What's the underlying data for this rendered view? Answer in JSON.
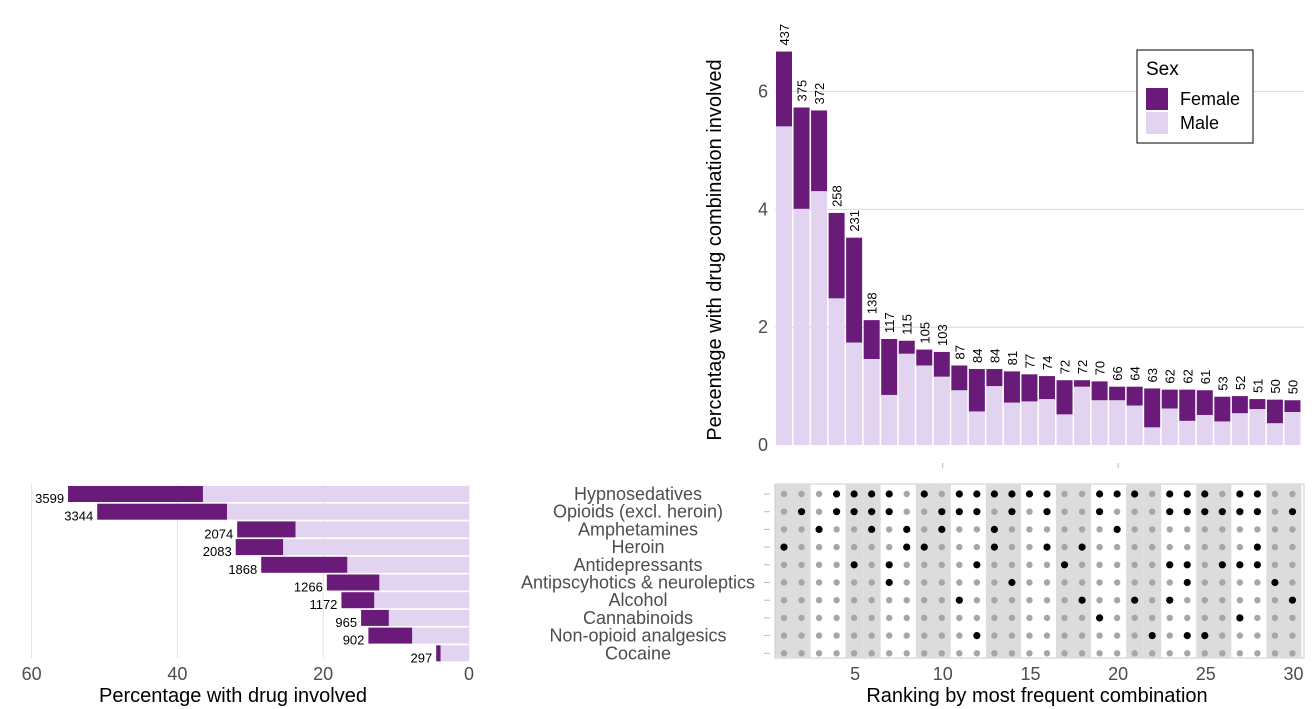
{
  "chart_data": [
    {
      "type": "bar",
      "orientation": "vertical",
      "stacked": true,
      "xlabel": "",
      "ylabel": "Percentage with drug combination involved",
      "ylim": [
        0,
        7
      ],
      "yticks": [
        0,
        2,
        4,
        6
      ],
      "grid": true,
      "ranks": [
        1,
        2,
        3,
        4,
        5,
        6,
        7,
        8,
        9,
        10,
        11,
        12,
        13,
        14,
        15,
        16,
        17,
        18,
        19,
        20,
        21,
        22,
        23,
        24,
        25,
        26,
        27,
        28,
        29,
        30
      ],
      "counts": [
        437,
        375,
        372,
        258,
        231,
        138,
        117,
        115,
        105,
        103,
        87,
        84,
        84,
        81,
        77,
        74,
        72,
        72,
        70,
        66,
        64,
        63,
        62,
        62,
        61,
        53,
        52,
        51,
        50,
        50
      ],
      "series": [
        {
          "name": "Female",
          "color": "#6a1b7a",
          "values": [
            1.27,
            1.72,
            1.37,
            1.45,
            1.78,
            0.66,
            0.95,
            0.22,
            0.27,
            0.42,
            0.42,
            0.72,
            0.29,
            0.53,
            0.46,
            0.39,
            0.58,
            0.11,
            0.32,
            0.23,
            0.32,
            0.66,
            0.32,
            0.53,
            0.42,
            0.42,
            0.29,
            0.17,
            0.4,
            0.2
          ]
        },
        {
          "name": "Male",
          "color": "#e2d4f0",
          "values": [
            5.41,
            4.01,
            4.31,
            2.49,
            1.74,
            1.46,
            0.85,
            1.55,
            1.35,
            1.16,
            0.93,
            0.57,
            1.0,
            0.72,
            0.74,
            0.78,
            0.52,
            0.99,
            0.76,
            0.76,
            0.67,
            0.3,
            0.62,
            0.41,
            0.51,
            0.4,
            0.54,
            0.61,
            0.37,
            0.56
          ]
        }
      ],
      "legend": {
        "title": "Sex",
        "position": "top-right",
        "entries": [
          "Female",
          "Male"
        ]
      }
    },
    {
      "type": "bar",
      "orientation": "horizontal",
      "stacked": true,
      "xlabel": "Percentage with drug involved",
      "xlim": [
        0,
        60
      ],
      "xticks": [
        60,
        40,
        20,
        0
      ],
      "x_reversed": true,
      "categories": [
        "Hypnosedatives",
        "Opioids (excl. heroin)",
        "Amphetamines",
        "Heroin",
        "Antidepressants",
        "Antipscyhotics & neuroleptics",
        "Alcohol",
        "Cannabinoids",
        "Non-opioid analgesics",
        "Cocaine"
      ],
      "counts": [
        3599,
        3344,
        2074,
        2083,
        1868,
        1266,
        1172,
        965,
        902,
        297
      ],
      "series": [
        {
          "name": "Female",
          "color": "#6a1b7a",
          "values": [
            18.5,
            17.8,
            8.0,
            6.5,
            11.8,
            7.2,
            4.5,
            3.8,
            6.0,
            0.6
          ]
        },
        {
          "name": "Male",
          "color": "#e2d4f0",
          "values": [
            36.5,
            33.2,
            23.8,
            25.5,
            16.7,
            12.3,
            13.0,
            11.0,
            7.8,
            3.9
          ]
        }
      ]
    },
    {
      "type": "matrix",
      "xlabel": "Ranking by most frequent combination",
      "xticks": [
        5,
        10,
        15,
        20,
        25,
        30
      ],
      "rows": [
        "Hypnosedatives",
        "Opioids (excl. heroin)",
        "Amphetamines",
        "Heroin",
        "Antidepressants",
        "Antipscyhotics & neuroleptics",
        "Alcohol",
        "Cannabinoids",
        "Non-opioid analgesics",
        "Cocaine"
      ],
      "combinations": [
        [
          "Heroin"
        ],
        [
          "Opioids (excl. heroin)"
        ],
        [
          "Amphetamines"
        ],
        [
          "Hypnosedatives",
          "Opioids (excl. heroin)"
        ],
        [
          "Hypnosedatives",
          "Opioids (excl. heroin)",
          "Antidepressants"
        ],
        [
          "Hypnosedatives",
          "Opioids (excl. heroin)",
          "Amphetamines"
        ],
        [
          "Hypnosedatives",
          "Opioids (excl. heroin)",
          "Antidepressants",
          "Antipscyhotics & neuroleptics"
        ],
        [
          "Amphetamines",
          "Heroin"
        ],
        [
          "Hypnosedatives",
          "Heroin"
        ],
        [
          "Opioids (excl. heroin)",
          "Amphetamines"
        ],
        [
          "Hypnosedatives",
          "Opioids (excl. heroin)",
          "Alcohol"
        ],
        [
          "Hypnosedatives",
          "Opioids (excl. heroin)",
          "Antidepressants",
          "Non-opioid analgesics"
        ],
        [
          "Hypnosedatives",
          "Amphetamines",
          "Heroin"
        ],
        [
          "Hypnosedatives",
          "Opioids (excl. heroin)",
          "Antipscyhotics & neuroleptics"
        ],
        [
          "Hypnosedatives"
        ],
        [
          "Hypnosedatives",
          "Opioids (excl. heroin)",
          "Heroin"
        ],
        [
          "Antidepressants"
        ],
        [
          "Heroin",
          "Alcohol"
        ],
        [
          "Hypnosedatives",
          "Opioids (excl. heroin)",
          "Cannabinoids"
        ],
        [
          "Hypnosedatives",
          "Amphetamines"
        ],
        [
          "Hypnosedatives",
          "Alcohol"
        ],
        [
          "Non-opioid analgesics"
        ],
        [
          "Hypnosedatives",
          "Opioids (excl. heroin)",
          "Antidepressants",
          "Alcohol"
        ],
        [
          "Hypnosedatives",
          "Opioids (excl. heroin)",
          "Antidepressants",
          "Antipscyhotics & neuroleptics",
          "Non-opioid analgesics"
        ],
        [
          "Hypnosedatives",
          "Opioids (excl. heroin)",
          "Non-opioid analgesics"
        ],
        [
          "Opioids (excl. heroin)",
          "Antidepressants"
        ],
        [
          "Hypnosedatives",
          "Opioids (excl. heroin)",
          "Antidepressants",
          "Cannabinoids"
        ],
        [
          "Hypnosedatives",
          "Opioids (excl. heroin)",
          "Heroin",
          "Antidepressants"
        ],
        [
          "Antipscyhotics & neuroleptics"
        ],
        [
          "Opioids (excl. heroin)",
          "Alcohol"
        ]
      ]
    }
  ]
}
